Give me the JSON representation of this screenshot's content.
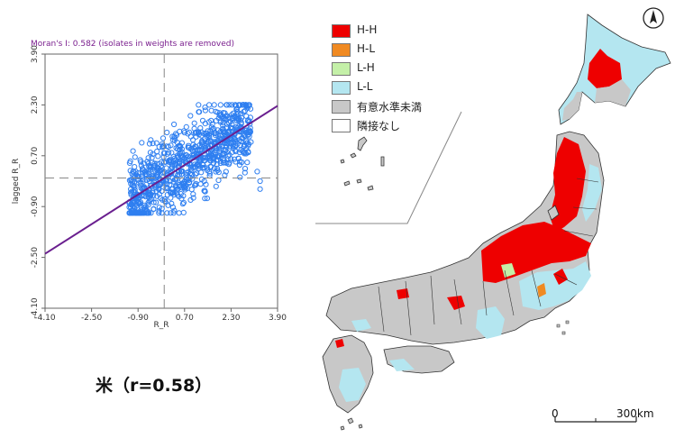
{
  "scatter": {
    "title": "Moran's I: 0.582 (isolates in weights are removed)",
    "xlabel": "R_R",
    "ylabel": "lagged R_R",
    "x_ticks": [
      "-4.10",
      "-2.50",
      "-0.90",
      "0.70",
      "2.30",
      "3.90"
    ],
    "y_ticks": [
      "-4.10",
      "-2.50",
      "-0.90",
      "0.70",
      "2.30",
      "3.90"
    ],
    "caption": "米（r=0.58）"
  },
  "chart_data": {
    "type": "scatter",
    "title": "Moran's I: 0.582 (isolates in weights are removed)",
    "xlabel": "R_R",
    "ylabel": "lagged R_R",
    "xlim": [
      -4.1,
      3.9
    ],
    "ylim": [
      -4.1,
      3.9
    ],
    "x_ticks": [
      -4.1,
      -2.5,
      -0.9,
      0.7,
      2.3,
      3.9
    ],
    "y_ticks": [
      -4.1,
      -2.5,
      -0.9,
      0.7,
      2.3,
      3.9
    ],
    "regression_slope": 0.582,
    "mean_x": 0,
    "mean_y": 0,
    "point_cloud_x_range": [
      -1.2,
      3.4
    ],
    "point_cloud_y_range": [
      -1.1,
      2.3
    ],
    "colors": {
      "points": "#2f7ff0",
      "regression": "#6a1f8f",
      "mean_lines": "#888888"
    }
  },
  "legend": {
    "items": [
      {
        "label": "H-H",
        "color": "#ee0000"
      },
      {
        "label": "H-L",
        "color": "#f08a22"
      },
      {
        "label": "L-H",
        "color": "#c4f0a8"
      },
      {
        "label": "L-L",
        "color": "#b4e6f0"
      },
      {
        "label": "有意水準未満",
        "color": "#c8c8c8"
      },
      {
        "label": "隣接なし",
        "color": "#ffffff"
      }
    ]
  },
  "map": {
    "scale_zero": "0",
    "scale_label": "300km",
    "colors": {
      "hh": "#ee0000",
      "hl": "#f08a22",
      "lh": "#c4f0a8",
      "ll": "#b4e6f0",
      "ns": "#c8c8c8",
      "border": "#333333"
    },
    "icons": [
      "north-arrow-icon"
    ]
  }
}
